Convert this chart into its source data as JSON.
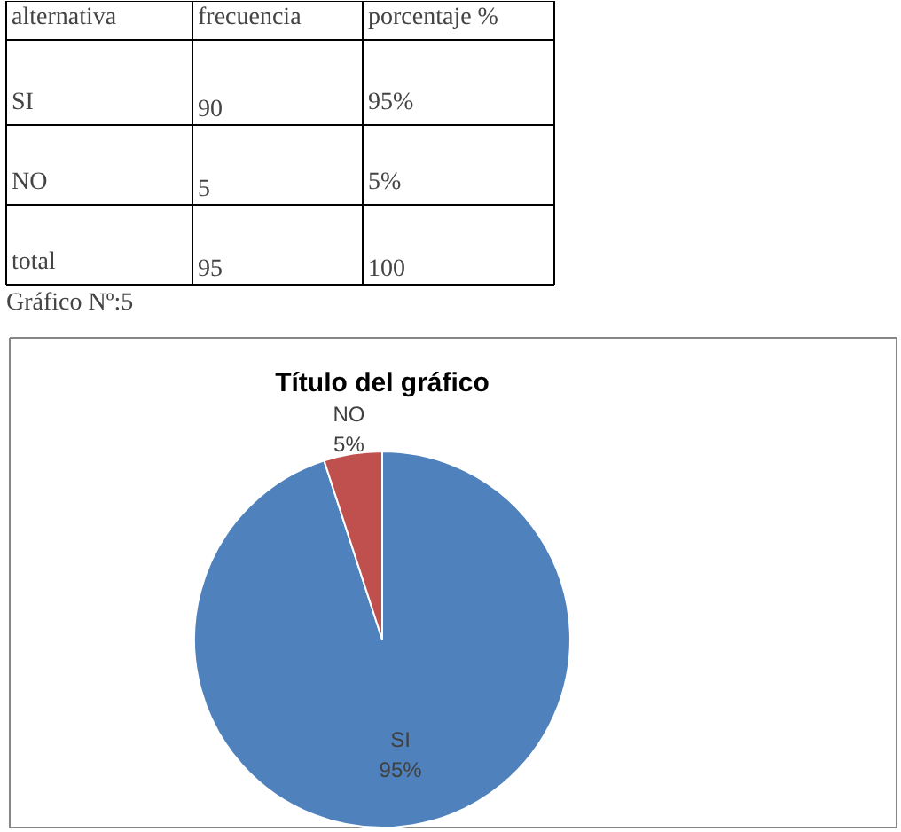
{
  "chart_data": {
    "type": "pie",
    "title": "Título del gráfico",
    "categories": [
      "SI",
      "NO"
    ],
    "values": [
      95,
      5
    ],
    "colors": [
      "#4f81bd",
      "#c0504d"
    ],
    "value_labels": [
      "95%",
      "5%"
    ],
    "annotations": [
      "alternativa",
      "frecuencia",
      "porcentaje %",
      "SI",
      "90",
      "95%",
      "NO",
      "5",
      "5%",
      "total",
      "95",
      "100",
      "Gráfico Nº:5"
    ]
  }
}
